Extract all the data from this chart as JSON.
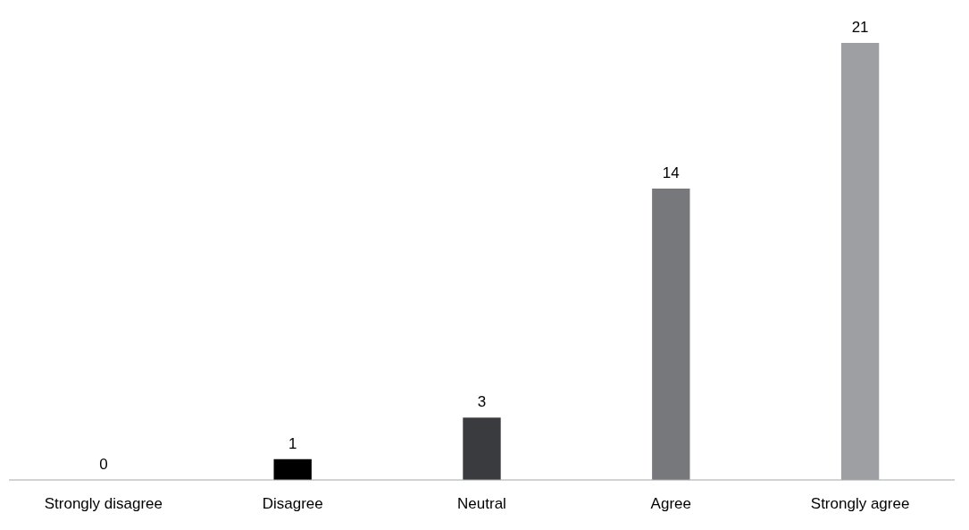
{
  "chart_data": {
    "type": "bar",
    "categories": [
      "Strongly disagree",
      "Disagree",
      "Neutral",
      "Agree",
      "Strongly agree"
    ],
    "values": [
      0,
      1,
      3,
      14,
      21
    ],
    "colors": [
      "#000000",
      "#000000",
      "#3a3b3f",
      "#77787c",
      "#9d9fa3"
    ],
    "data_labels": true
  }
}
